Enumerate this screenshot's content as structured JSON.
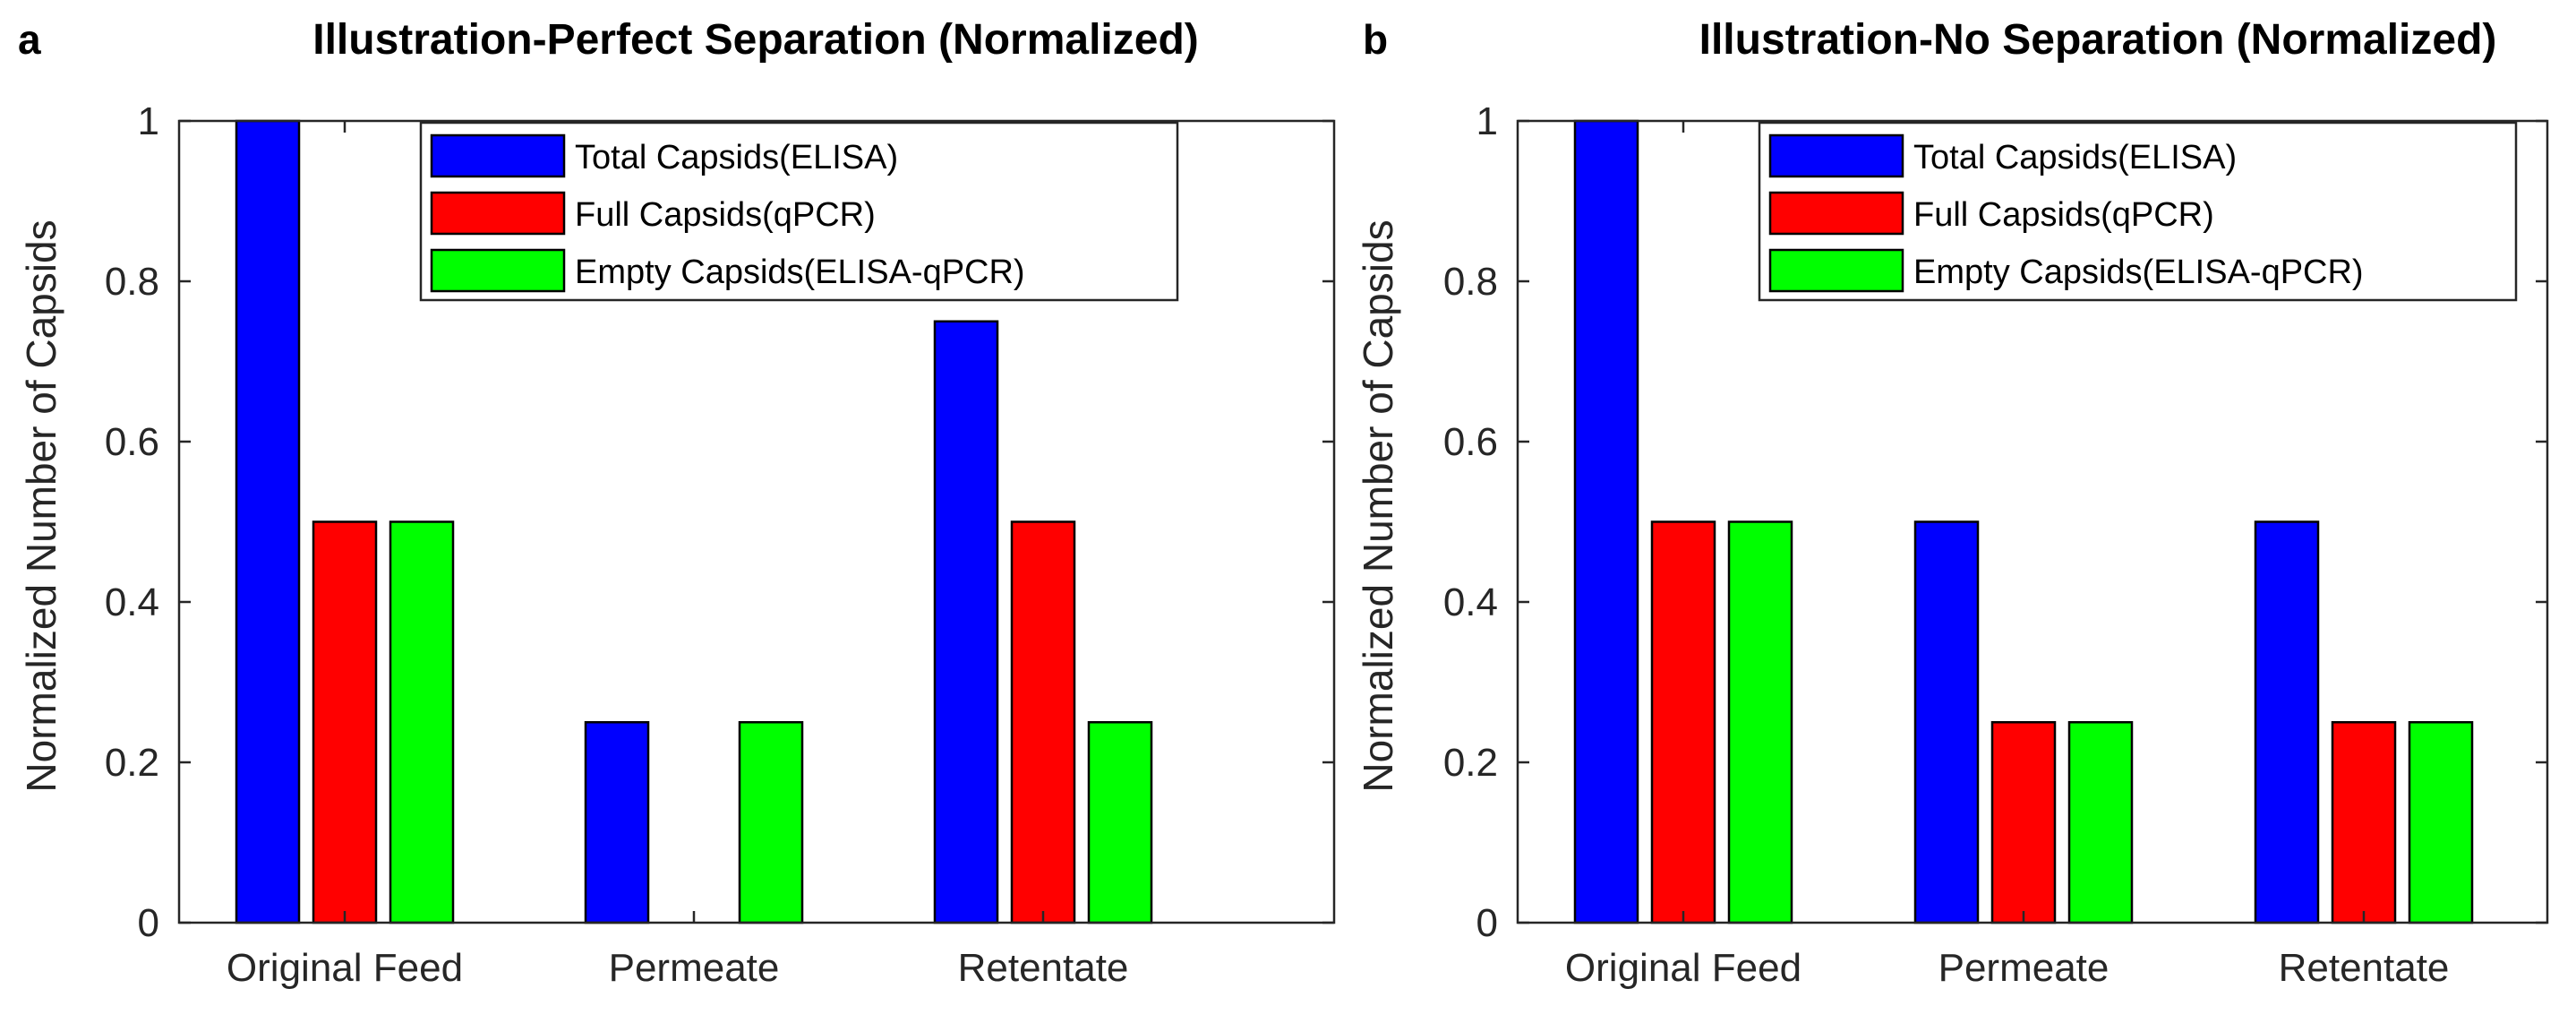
{
  "chart_data": [
    {
      "panel": "a",
      "type": "bar",
      "title": "Illustration-Perfect Separation (Normalized)",
      "xlabel": "",
      "ylabel": "Normalized Number of Capsids",
      "ylim": [
        0,
        1
      ],
      "yticks": [
        "0",
        "0.2",
        "0.4",
        "0.6",
        "0.8",
        "1"
      ],
      "categories": [
        "Original Feed",
        "Permeate",
        "Retentate"
      ],
      "legend_position": "top-right",
      "series": [
        {
          "name": "Total Capsids(ELISA)",
          "color": "#0000FF",
          "values": [
            1.0,
            0.25,
            0.75
          ]
        },
        {
          "name": "Full Capsids(qPCR)",
          "color": "#FF0000",
          "values": [
            0.5,
            0,
            0.5
          ]
        },
        {
          "name": "Empty Capsids(ELISA-qPCR)",
          "color": "#00FF00",
          "values": [
            0.5,
            0.25,
            0.25
          ]
        }
      ]
    },
    {
      "panel": "b",
      "type": "bar",
      "title": "Illustration-No Separation (Normalized)",
      "xlabel": "",
      "ylabel": "Normalized Number of Capsids",
      "ylim": [
        0,
        1
      ],
      "yticks": [
        "0",
        "0.2",
        "0.4",
        "0.6",
        "0.8",
        "1"
      ],
      "categories": [
        "Original Feed",
        "Permeate",
        "Retentate"
      ],
      "legend_position": "top-right",
      "series": [
        {
          "name": "Total Capsids(ELISA)",
          "color": "#0000FF",
          "values": [
            1.0,
            0.5,
            0.5
          ]
        },
        {
          "name": "Full Capsids(qPCR)",
          "color": "#FF0000",
          "values": [
            0.5,
            0.25,
            0.25
          ]
        },
        {
          "name": "Empty Capsids(ELISA-qPCR)",
          "color": "#00FF00",
          "values": [
            0.5,
            0.25,
            0.25
          ]
        }
      ]
    }
  ]
}
